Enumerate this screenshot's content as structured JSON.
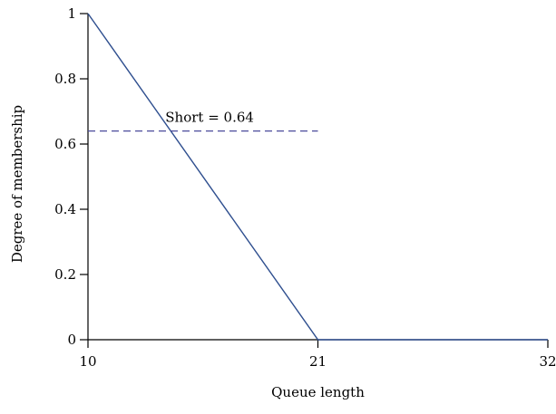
{
  "chart_data": {
    "type": "line",
    "xlabel": "Queue length",
    "ylabel": "Degree of membership",
    "xlim": [
      10,
      32
    ],
    "ylim": [
      0,
      1
    ],
    "x_ticks": [
      10,
      21,
      32
    ],
    "y_ticks": [
      0,
      0.2,
      0.4,
      0.6,
      0.8,
      1
    ],
    "y_tick_labels": [
      "0",
      "0.2",
      "0.4",
      "0.6",
      "0.8",
      "1"
    ],
    "grid": false,
    "series": [
      {
        "x": [
          10,
          21,
          32
        ],
        "y": [
          1,
          0,
          0
        ],
        "color": "#2f4f8f",
        "style": "solid"
      }
    ],
    "reference_lines": [
      {
        "orientation": "horizontal",
        "y": 0.64,
        "x_range": [
          10,
          21
        ],
        "color": "#4a4a9a",
        "style": "dashed"
      }
    ],
    "annotations": [
      {
        "text": "Short = 0.64",
        "x": 13.7,
        "y": 0.64
      }
    ]
  }
}
